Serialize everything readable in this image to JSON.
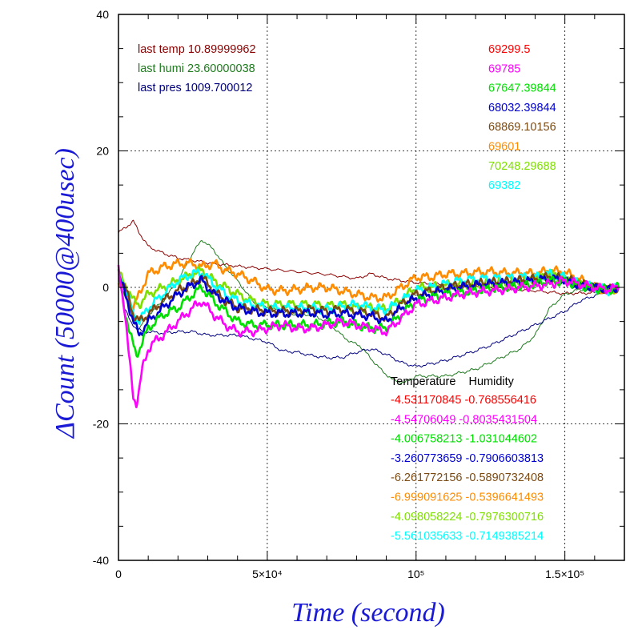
{
  "chart_data": {
    "type": "line",
    "xlabel": "Time (second)",
    "ylabel": "ΔCount (50000@400usec)",
    "xlim": [
      0,
      170000
    ],
    "ylim": [
      -40,
      40
    ],
    "grid": true,
    "x_ticks": [
      {
        "value": 0,
        "label": "0"
      },
      {
        "value": 50000,
        "label": "5×10⁴"
      },
      {
        "value": 100000,
        "label": "10⁵"
      },
      {
        "value": 150000,
        "label": "1.5×10⁵"
      }
    ],
    "y_ticks": [
      {
        "value": 40,
        "label": "40"
      },
      {
        "value": 20,
        "label": "20"
      },
      {
        "value": 0,
        "label": "0"
      },
      {
        "value": -20,
        "label": "-20"
      },
      {
        "value": -40,
        "label": "-40"
      }
    ],
    "annotations_left": [
      {
        "text": "last temp 10.89999962",
        "color": "#8b0000"
      },
      {
        "text": "last humi 23.60000038",
        "color": "#1f7a1f"
      },
      {
        "text": "last pres 1009.700012",
        "color": "#00007f"
      }
    ],
    "annotations_right": [
      {
        "text": "69299.5",
        "color": "#ff0000"
      },
      {
        "text": "69785",
        "color": "#ff00ff"
      },
      {
        "text": "67647.39844",
        "color": "#00e000"
      },
      {
        "text": "68032.39844",
        "color": "#0000d0"
      },
      {
        "text": "68869.10156",
        "color": "#7b4a12"
      },
      {
        "text": "69601",
        "color": "#ff8c00"
      },
      {
        "text": "70248.29688",
        "color": "#7fe000"
      },
      {
        "text": "69382",
        "color": "#00ffff"
      }
    ],
    "coef_header": "Temperature    Humidity",
    "coefficients": [
      {
        "text": "-4.531170845 -0.768556416",
        "color": "#ff0000"
      },
      {
        "text": "-4.54706049 -0.8035431504",
        "color": "#ff00ff"
      },
      {
        "text": "-4.006758213 -1.031044602",
        "color": "#00e000"
      },
      {
        "text": "-3.260773659 -0.7906603813",
        "color": "#0000d0"
      },
      {
        "text": "-6.261772156 -0.5890732408",
        "color": "#7b4a12"
      },
      {
        "text": "-6.999091625 -0.5396641493",
        "color": "#ff8c00"
      },
      {
        "text": "-4.098058224 -0.797630071​6",
        "color": "#7fe000"
      },
      {
        "text": "-5.561035633 -0.7149385214",
        "color": "#00ffff"
      }
    ],
    "series": [
      {
        "color": "#8b0000",
        "x": [
          0,
          3000,
          5000,
          7000,
          10000,
          15000,
          20000,
          30000,
          40000,
          50000,
          60000,
          70000,
          80000,
          85000,
          90000,
          100000,
          110000,
          120000,
          130000,
          140000,
          150000,
          160000,
          168000
        ],
        "y": [
          8,
          9,
          9.7,
          8,
          6,
          5,
          4.3,
          3.6,
          3.1,
          2.7,
          2.3,
          1.9,
          1.3,
          2,
          1.3,
          0.7,
          0.4,
          0.1,
          -0.2,
          -0.5,
          -0.9,
          -0.8,
          -0.5
        ]
      },
      {
        "color": "#1f7a1f",
        "x": [
          0,
          3000,
          5000,
          7000,
          10000,
          15000,
          20000,
          25000,
          28000,
          32000,
          36000,
          40000,
          45000,
          50000,
          55000,
          60000,
          65000,
          70000,
          75000,
          78000,
          81000,
          84000,
          88000,
          92000,
          96000,
          100000,
          105000,
          110000,
          115000,
          120000,
          125000,
          130000,
          135000,
          140000,
          145000,
          150000,
          155000,
          160000,
          168000
        ],
        "y": [
          1,
          -2,
          -5,
          -6,
          -4,
          -2,
          1,
          5,
          7,
          5.5,
          3,
          1,
          -2,
          -3,
          -3.5,
          -4,
          -4,
          -5,
          -7,
          -8,
          -8.5,
          -10,
          -12,
          -13.5,
          -14,
          -13,
          -13,
          -13,
          -12.5,
          -12,
          -11,
          -10,
          -9,
          -7,
          -3,
          -1,
          -0.3,
          -0.5,
          0
        ]
      },
      {
        "color": "#00007f",
        "x": [
          0,
          2000,
          4000,
          6000,
          8000,
          10000,
          15000,
          20000,
          25000,
          30000,
          35000,
          40000,
          45000,
          50000,
          55000,
          60000,
          65000,
          70000,
          75000,
          80000,
          85000,
          90000,
          95000,
          100000,
          105000,
          110000,
          115000,
          120000,
          125000,
          130000,
          135000,
          140000,
          145000,
          150000,
          155000,
          160000,
          165000,
          168000
        ],
        "y": [
          2,
          -3,
          -5,
          -6,
          -6.5,
          -6.5,
          -6.7,
          -6.5,
          -6.5,
          -7,
          -7,
          -7,
          -7.5,
          -8,
          -9.3,
          -9.5,
          -10,
          -10.3,
          -10.3,
          -9.5,
          -9,
          -9.8,
          -11,
          -11.6,
          -11.2,
          -10.7,
          -10,
          -9.3,
          -8.5,
          -7.5,
          -6.5,
          -5.5,
          -4.5,
          -3.5,
          -2,
          -1.2,
          -0.5,
          0
        ]
      },
      {
        "color": "#ff8c00",
        "x": [
          0,
          3000,
          5000,
          7000,
          10000,
          15000,
          20000,
          25000,
          28000,
          32000,
          36000,
          40000,
          45000,
          50000,
          55000,
          60000,
          65000,
          70000,
          75000,
          80000,
          85000,
          90000,
          95000,
          100000,
          105000,
          110000,
          115000,
          120000,
          125000,
          130000,
          135000,
          140000,
          145000,
          150000,
          155000,
          160000,
          165000,
          168000
        ],
        "y": [
          1,
          -1,
          -3,
          -1,
          2,
          3,
          3.5,
          3.5,
          3,
          3.5,
          2.5,
          2,
          1,
          -0.3,
          -0.5,
          -0.3,
          0,
          0,
          -0.5,
          -1,
          -1.5,
          -1.5,
          0,
          1.5,
          1.5,
          2,
          2,
          2.2,
          2.3,
          2.1,
          2.1,
          2,
          2.5,
          2.2,
          1.2,
          0,
          -0.5,
          0
        ]
      },
      {
        "color": "#7fe000",
        "x": [
          0,
          3000,
          5000,
          7000,
          10000,
          15000,
          20000,
          25000,
          28000,
          32000,
          36000,
          40000,
          45000,
          50000,
          55000,
          60000,
          65000,
          70000,
          75000,
          80000,
          85000,
          90000,
          95000,
          100000,
          105000,
          110000,
          115000,
          120000,
          125000,
          130000,
          135000,
          140000,
          145000,
          150000,
          155000,
          160000,
          165000,
          168000
        ],
        "y": [
          2,
          0,
          -2,
          -2.5,
          -1,
          0,
          1,
          2,
          2.5,
          1,
          0,
          -1,
          -2,
          -2.5,
          -2.5,
          -2.5,
          -2.5,
          -2.7,
          -2.5,
          -3,
          -3,
          -3.2,
          -1.8,
          0,
          0,
          0.3,
          0.5,
          0.5,
          0.7,
          0.8,
          1,
          1.3,
          2,
          1.2,
          0.5,
          0,
          -0.5,
          0
        ]
      },
      {
        "color": "#00ffff",
        "x": [
          0,
          3000,
          5000,
          7000,
          10000,
          15000,
          20000,
          25000,
          28000,
          32000,
          36000,
          40000,
          45000,
          50000,
          55000,
          60000,
          65000,
          70000,
          75000,
          80000,
          85000,
          90000,
          95000,
          100000,
          105000,
          110000,
          115000,
          120000,
          125000,
          130000,
          135000,
          140000,
          145000,
          150000,
          155000,
          160000,
          165000,
          168000
        ],
        "y": [
          2,
          -1,
          -4,
          -5,
          -3,
          -1,
          1,
          2,
          2.2,
          0.5,
          -1,
          -2,
          -2.5,
          -3,
          -3,
          -3,
          -3,
          -3.2,
          -2.8,
          -2.5,
          -3,
          -3.3,
          -2,
          -0.5,
          0,
          0.5,
          1,
          1.2,
          1.3,
          1.3,
          1.5,
          1.5,
          2,
          1.5,
          0.5,
          0,
          -0.5,
          0
        ]
      },
      {
        "color": "#7b4a12",
        "x": [
          0,
          3000,
          5000,
          7000,
          10000,
          15000,
          20000,
          25000,
          28000,
          32000,
          36000,
          40000,
          45000,
          50000,
          55000,
          60000,
          65000,
          70000,
          75000,
          80000,
          85000,
          90000,
          95000,
          100000,
          105000,
          110000,
          115000,
          120000,
          125000,
          130000,
          135000,
          140000,
          145000,
          150000,
          155000,
          160000,
          165000,
          168000
        ],
        "y": [
          2,
          -1,
          -4,
          -5,
          -4,
          -2,
          -0.5,
          0.5,
          1.5,
          -0.5,
          -2,
          -3,
          -3.2,
          -3.5,
          -3.5,
          -3.5,
          -3.2,
          -3.5,
          -3.2,
          -3.5,
          -3.8,
          -4.5,
          -2.5,
          -1,
          -0.5,
          0,
          0.3,
          0.5,
          0.7,
          0.8,
          1,
          1.2,
          1.5,
          1.3,
          0.5,
          0,
          -0.3,
          0
        ]
      },
      {
        "color": "#0000d0",
        "x": [
          0,
          3000,
          5000,
          7000,
          10000,
          15000,
          20000,
          25000,
          28000,
          32000,
          36000,
          40000,
          45000,
          50000,
          55000,
          60000,
          65000,
          70000,
          75000,
          80000,
          85000,
          90000,
          95000,
          100000,
          105000,
          110000,
          115000,
          120000,
          125000,
          130000,
          135000,
          140000,
          145000,
          150000,
          155000,
          160000,
          165000,
          168000
        ],
        "y": [
          2,
          -2,
          -5,
          -7,
          -5,
          -3,
          -1,
          0.5,
          1,
          -1,
          -2,
          -3,
          -3.5,
          -3.8,
          -3.8,
          -3.8,
          -3.7,
          -4,
          -3.8,
          -4,
          -4.2,
          -5,
          -3,
          -1.5,
          -1,
          -0.3,
          0,
          0.3,
          0.5,
          0.6,
          0.7,
          1,
          1.3,
          1,
          0.2,
          0,
          -0.3,
          0
        ]
      },
      {
        "color": "#00e000",
        "x": [
          0,
          2000,
          4000,
          6000,
          8000,
          10000,
          15000,
          20000,
          25000,
          28000,
          32000,
          36000,
          40000,
          45000,
          50000,
          55000,
          60000,
          65000,
          70000,
          75000,
          80000,
          85000,
          90000,
          95000,
          100000,
          105000,
          110000,
          115000,
          120000,
          125000,
          130000,
          135000,
          140000,
          145000,
          150000,
          155000,
          160000,
          165000,
          168000
        ],
        "y": [
          2,
          -3,
          -7,
          -10,
          -8,
          -6,
          -4,
          -3,
          -1,
          0,
          -2,
          -3.5,
          -5,
          -5.5,
          -5.5,
          -5.5,
          -5.5,
          -5.5,
          -5.3,
          -5,
          -5.5,
          -6,
          -6,
          -4,
          -2,
          -1.5,
          -1,
          -0.8,
          -0.5,
          -0.2,
          0,
          0.2,
          0.5,
          1,
          0.8,
          0.3,
          -0.2,
          -0.3,
          0
        ]
      },
      {
        "color": "#ff00ff",
        "x": [
          0,
          2000,
          3500,
          5000,
          6000,
          7000,
          8000,
          10000,
          12000,
          15000,
          20000,
          25000,
          28000,
          32000,
          36000,
          40000,
          45000,
          50000,
          55000,
          60000,
          65000,
          70000,
          75000,
          80000,
          85000,
          90000,
          95000,
          100000,
          105000,
          110000,
          115000,
          120000,
          125000,
          130000,
          135000,
          140000,
          145000,
          150000,
          155000,
          160000,
          165000,
          168000
        ],
        "y": [
          3,
          -3,
          -10,
          -16,
          -17,
          -15,
          -12,
          -9,
          -8,
          -7,
          -5,
          -3,
          -2,
          -4,
          -5.5,
          -6.5,
          -6.5,
          -6,
          -5.5,
          -6,
          -6,
          -5.5,
          -5,
          -5.5,
          -6,
          -6.5,
          -4.5,
          -2.5,
          -2,
          -1.5,
          -1,
          -0.7,
          -0.5,
          -0.3,
          0,
          0.2,
          0.5,
          1,
          0.5,
          0,
          -0.3,
          0
        ]
      }
    ]
  }
}
